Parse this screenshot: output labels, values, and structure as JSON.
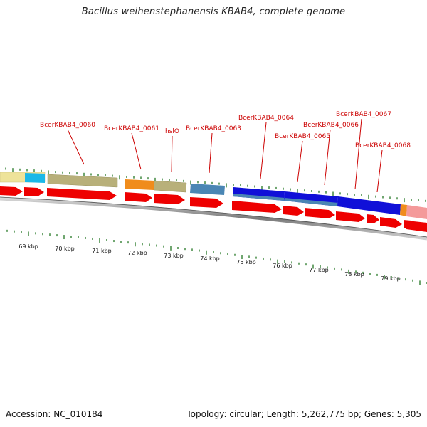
{
  "title": "Bacillus weihenstephanensis KBAB4, complete genome",
  "footer": {
    "accession": "Accession: NC_010184",
    "summary": "Topology: circular; Length: 5,262,775 bp; Genes: 5,305"
  },
  "colors": {
    "gene_arrow": "#ee0000",
    "gene_label": "#cc0000",
    "tick": "#227722",
    "backbone": "#888888",
    "feature_palette": [
      "#eee39a",
      "#1ab8e8",
      "#b8b07a",
      "#f08c1c",
      "#4a86b4",
      "#1010d8",
      "#f49a9a"
    ]
  },
  "kbp_labels": [
    "69 kbp",
    "70 kbp",
    "71 kbp",
    "72 kbp",
    "73 kbp",
    "74 kbp",
    "75 kbp",
    "76 kbp",
    "77 kbp",
    "78 kbp",
    "79 kbp"
  ],
  "gene_labels": [
    "BcerKBAB4_0060",
    "BcerKBAB4_0061",
    "hslO",
    "BcerKBAB4_0063",
    "BcerKBAB4_0064",
    "BcerKBAB4_0065",
    "BcerKBAB4_0066",
    "BcerKBAB4_0067",
    "BcerKBAB4_0068"
  ]
}
